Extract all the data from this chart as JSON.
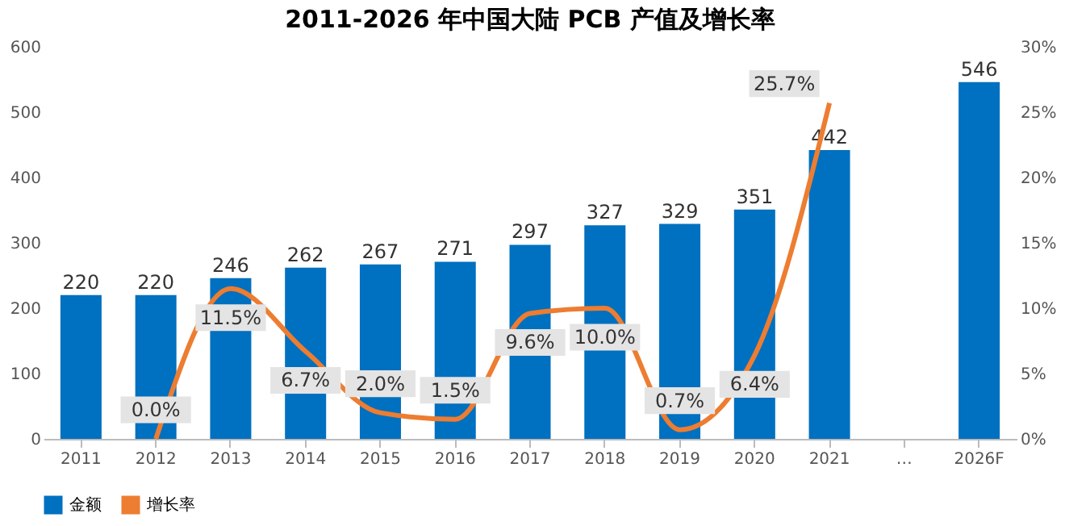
{
  "chart_data": {
    "type": "bar",
    "title": "2011-2026 年中国大陆 PCB 产值及增长率",
    "categories": [
      "2011",
      "2012",
      "2013",
      "2014",
      "2015",
      "2016",
      "2017",
      "2018",
      "2019",
      "2020",
      "2021",
      "…",
      "2026F"
    ],
    "series": [
      {
        "name": "金额",
        "color": "#0070c0",
        "values": [
          220,
          220,
          246,
          262,
          267,
          271,
          297,
          327,
          329,
          351,
          442,
          null,
          546
        ]
      },
      {
        "name": "增长率",
        "type": "line",
        "axis": "y2",
        "color": "#ed7d31",
        "values": [
          null,
          0.0,
          11.5,
          6.7,
          2.0,
          1.5,
          9.6,
          10.0,
          0.7,
          6.4,
          25.7,
          null,
          null
        ],
        "value_labels": [
          null,
          "0.0%",
          "11.5%",
          "6.7%",
          "2.0%",
          "1.5%",
          "9.6%",
          "10.0%",
          "0.7%",
          "6.4%",
          "25.7%",
          null,
          null
        ]
      }
    ],
    "ylim": [
      0,
      600
    ],
    "yticks": [
      0,
      100,
      200,
      300,
      400,
      500,
      600
    ],
    "y2lim": [
      0,
      30
    ],
    "y2ticks": [
      {
        "value": 0,
        "label": "0%"
      },
      {
        "value": 5,
        "label": "5%"
      },
      {
        "value": 10,
        "label": "10%"
      },
      {
        "value": 15,
        "label": "15%"
      },
      {
        "value": 20,
        "label": "20%"
      },
      {
        "value": 25,
        "label": "25%"
      },
      {
        "value": 30,
        "label": "30%"
      }
    ],
    "data_labels": true,
    "grid": false,
    "legend": "bottom",
    "marker": "none",
    "line_style": "solid"
  }
}
